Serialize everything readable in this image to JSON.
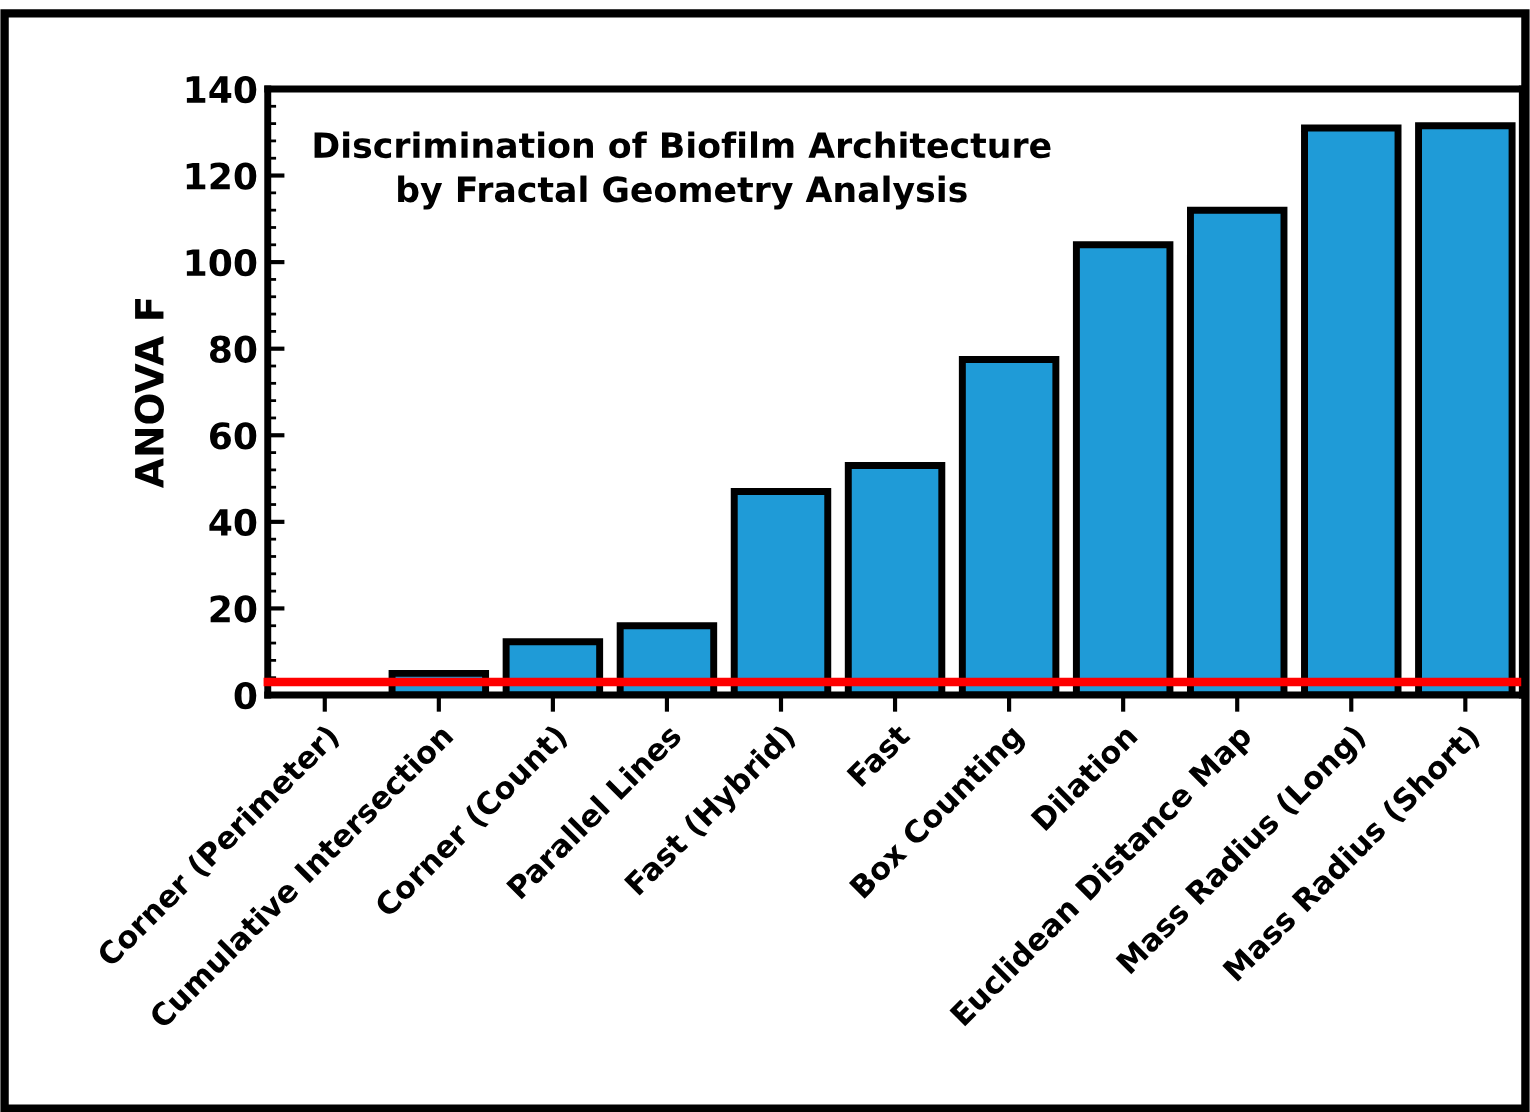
{
  "chart_data": {
    "type": "bar",
    "title": "Discrimination of Biofilm Architecture\nby Fractal Geometry Analysis",
    "ylabel": "ANOVA F",
    "categories": [
      "Corner (Perimeter)",
      "Cumulative Intersection",
      "Corner (Count)",
      "Parallel Lines",
      "Fast (Hybrid)",
      "Fast",
      "Box Counting",
      "Dilation",
      "Euclidean Distance Map",
      "Mass Radius (Long)",
      "Mass Radius (Short)"
    ],
    "values": [
      null,
      5,
      12.3,
      16,
      47,
      53,
      77.5,
      104,
      112,
      131,
      131.5
    ],
    "color": "#1f9bd7",
    "ylim": [
      0,
      140
    ],
    "yticks": [
      0,
      20,
      40,
      60,
      80,
      100,
      120,
      140
    ],
    "grid": false,
    "ref_lines": [
      {
        "axis": "y",
        "value": 3,
        "color": "#ff0000"
      }
    ]
  }
}
